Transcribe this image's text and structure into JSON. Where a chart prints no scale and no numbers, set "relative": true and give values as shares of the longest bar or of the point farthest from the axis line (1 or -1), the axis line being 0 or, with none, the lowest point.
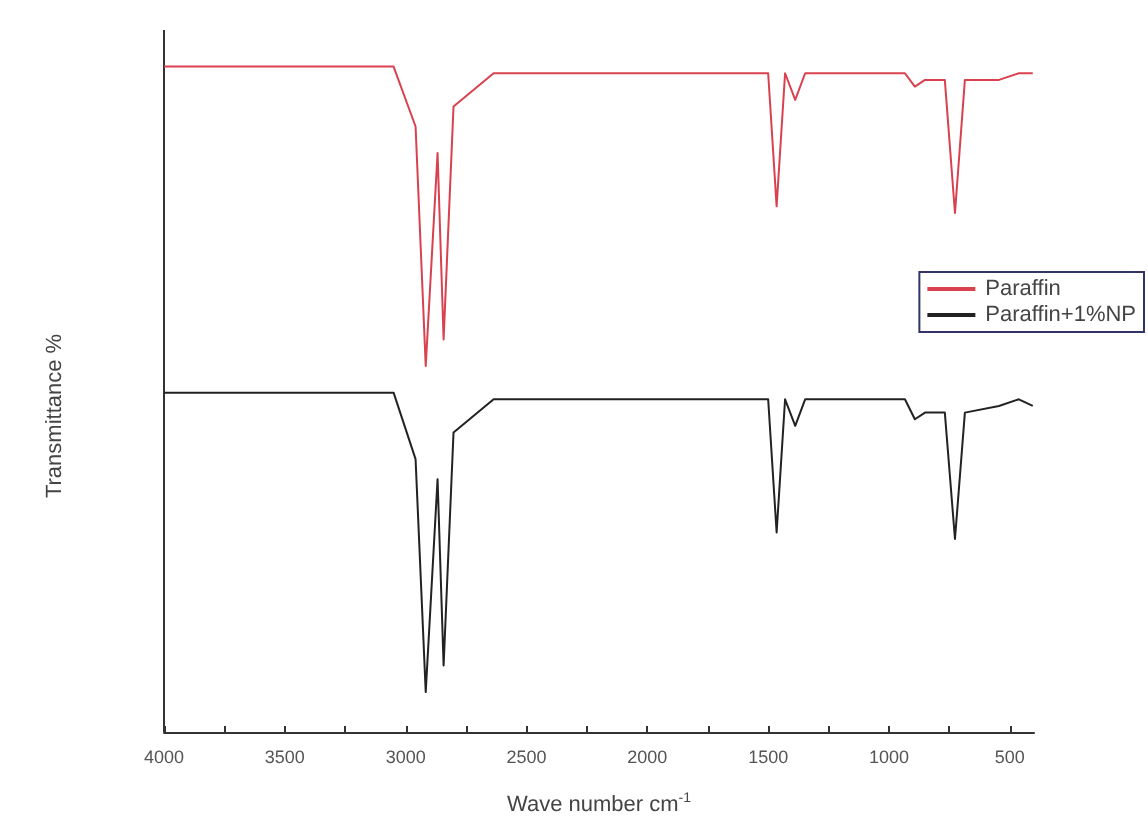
{
  "chart_data": {
    "type": "line",
    "relative": true,
    "xlabel": "Wave number cm$^{-1}$",
    "ylabel": "Transmittance %",
    "x": [
      4000,
      3500,
      3050,
      2959,
      2917,
      2868,
      2843,
      2802,
      2636,
      2347,
      2000,
      1500,
      1465,
      1430,
      1388,
      1347,
      934,
      893,
      851,
      769,
      727,
      686,
      545,
      463,
      405
    ],
    "series": [
      {
        "name": "Paraffin",
        "color": "#d9414f",
        "values": [
          1,
          1,
          1,
          0.91,
          0.55,
          0.87,
          0.59,
          0.94,
          0.99,
          0.99,
          0.99,
          0.99,
          0.79,
          0.99,
          0.95,
          0.99,
          0.99,
          0.97,
          0.98,
          0.98,
          0.78,
          0.98,
          0.98,
          0.99,
          0.99
        ]
      },
      {
        "name": "Paraffin+1%NP",
        "color": "#222222",
        "values": [
          0.51,
          0.51,
          0.51,
          0.41,
          0.06,
          0.38,
          0.1,
          0.45,
          0.5,
          0.5,
          0.5,
          0.5,
          0.3,
          0.5,
          0.46,
          0.5,
          0.5,
          0.47,
          0.48,
          0.48,
          0.29,
          0.48,
          0.49,
          0.5,
          0.49
        ]
      }
    ],
    "xlim": [
      4000,
      400
    ],
    "xticks": [
      4000,
      {
        "value": 3750,
        "label": null
      },
      3500,
      {
        "value": 3250,
        "label": null
      },
      3000,
      {
        "value": 2750,
        "label": null
      },
      2500,
      {
        "value": 2250,
        "label": null
      },
      2000,
      {
        "value": 1750,
        "label": null
      },
      1500,
      {
        "value": 1250,
        "label": null
      },
      1000,
      {
        "value": 750,
        "label": null
      },
      500
    ],
    "tick_labels": "x",
    "grid": false,
    "legend": "right",
    "marker": "none",
    "line_style": "solid"
  }
}
